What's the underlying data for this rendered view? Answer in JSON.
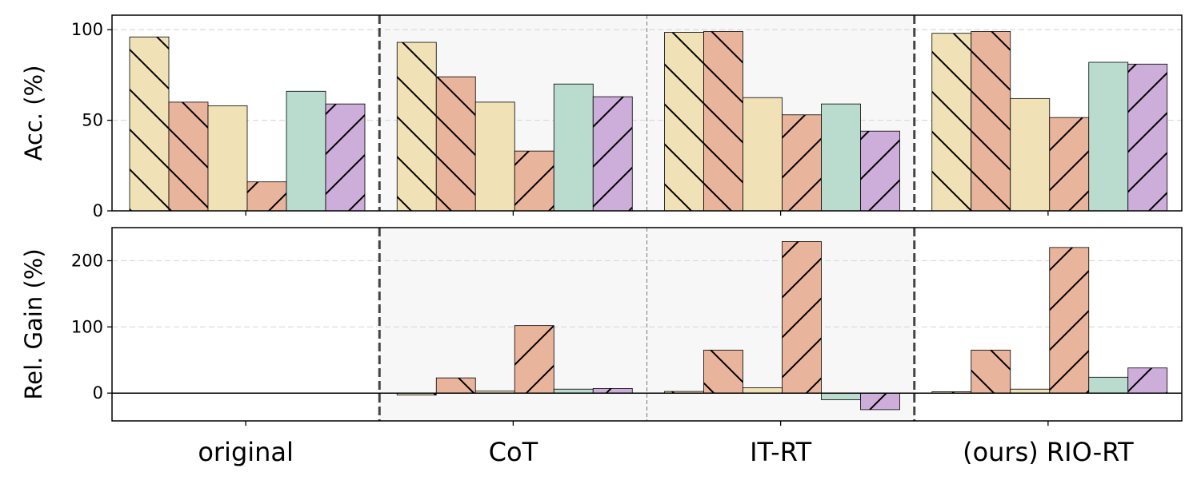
{
  "chart_data": {
    "type": "bar",
    "categories": [
      "original",
      "CoT",
      "IT-RT",
      "(ours) RIO-RT"
    ],
    "colors": {
      "yellow": "#f0e2b6",
      "salmon": "#e9b49c",
      "green": "#b9dccf",
      "purple": "#cdadd9",
      "shaded_region": "#f7f7f7"
    },
    "bar_styles": [
      {
        "color": "yellow",
        "hatch": "backslash"
      },
      {
        "color": "salmon",
        "hatch": "backslash"
      },
      {
        "color": "yellow",
        "hatch": "none"
      },
      {
        "color": "salmon",
        "hatch": "slash"
      },
      {
        "color": "green",
        "hatch": "none"
      },
      {
        "color": "purple",
        "hatch": "slash"
      }
    ],
    "panels": [
      {
        "ylabel": "Acc. (%)",
        "ylim": [
          0,
          108
        ],
        "yticks": [
          0,
          50,
          100
        ],
        "grid": true,
        "values": [
          [
            96,
            60,
            58,
            16,
            66,
            59
          ],
          [
            93,
            74,
            60,
            33,
            70,
            63
          ],
          [
            98.5,
            99,
            62.5,
            53,
            59,
            44
          ],
          [
            98,
            99,
            62,
            51.5,
            82,
            81
          ]
        ]
      },
      {
        "ylabel": "Rel. Gain (%)",
        "ylim": [
          -42,
          250
        ],
        "yticks": [
          0,
          100,
          200
        ],
        "grid": true,
        "values": [
          [
            0,
            0,
            0,
            0,
            0,
            0
          ],
          [
            -3,
            23,
            3,
            102,
            6,
            7
          ],
          [
            2.5,
            65,
            8,
            229,
            -10,
            -25
          ],
          [
            2,
            65,
            6,
            220,
            24,
            38
          ]
        ]
      }
    ]
  }
}
